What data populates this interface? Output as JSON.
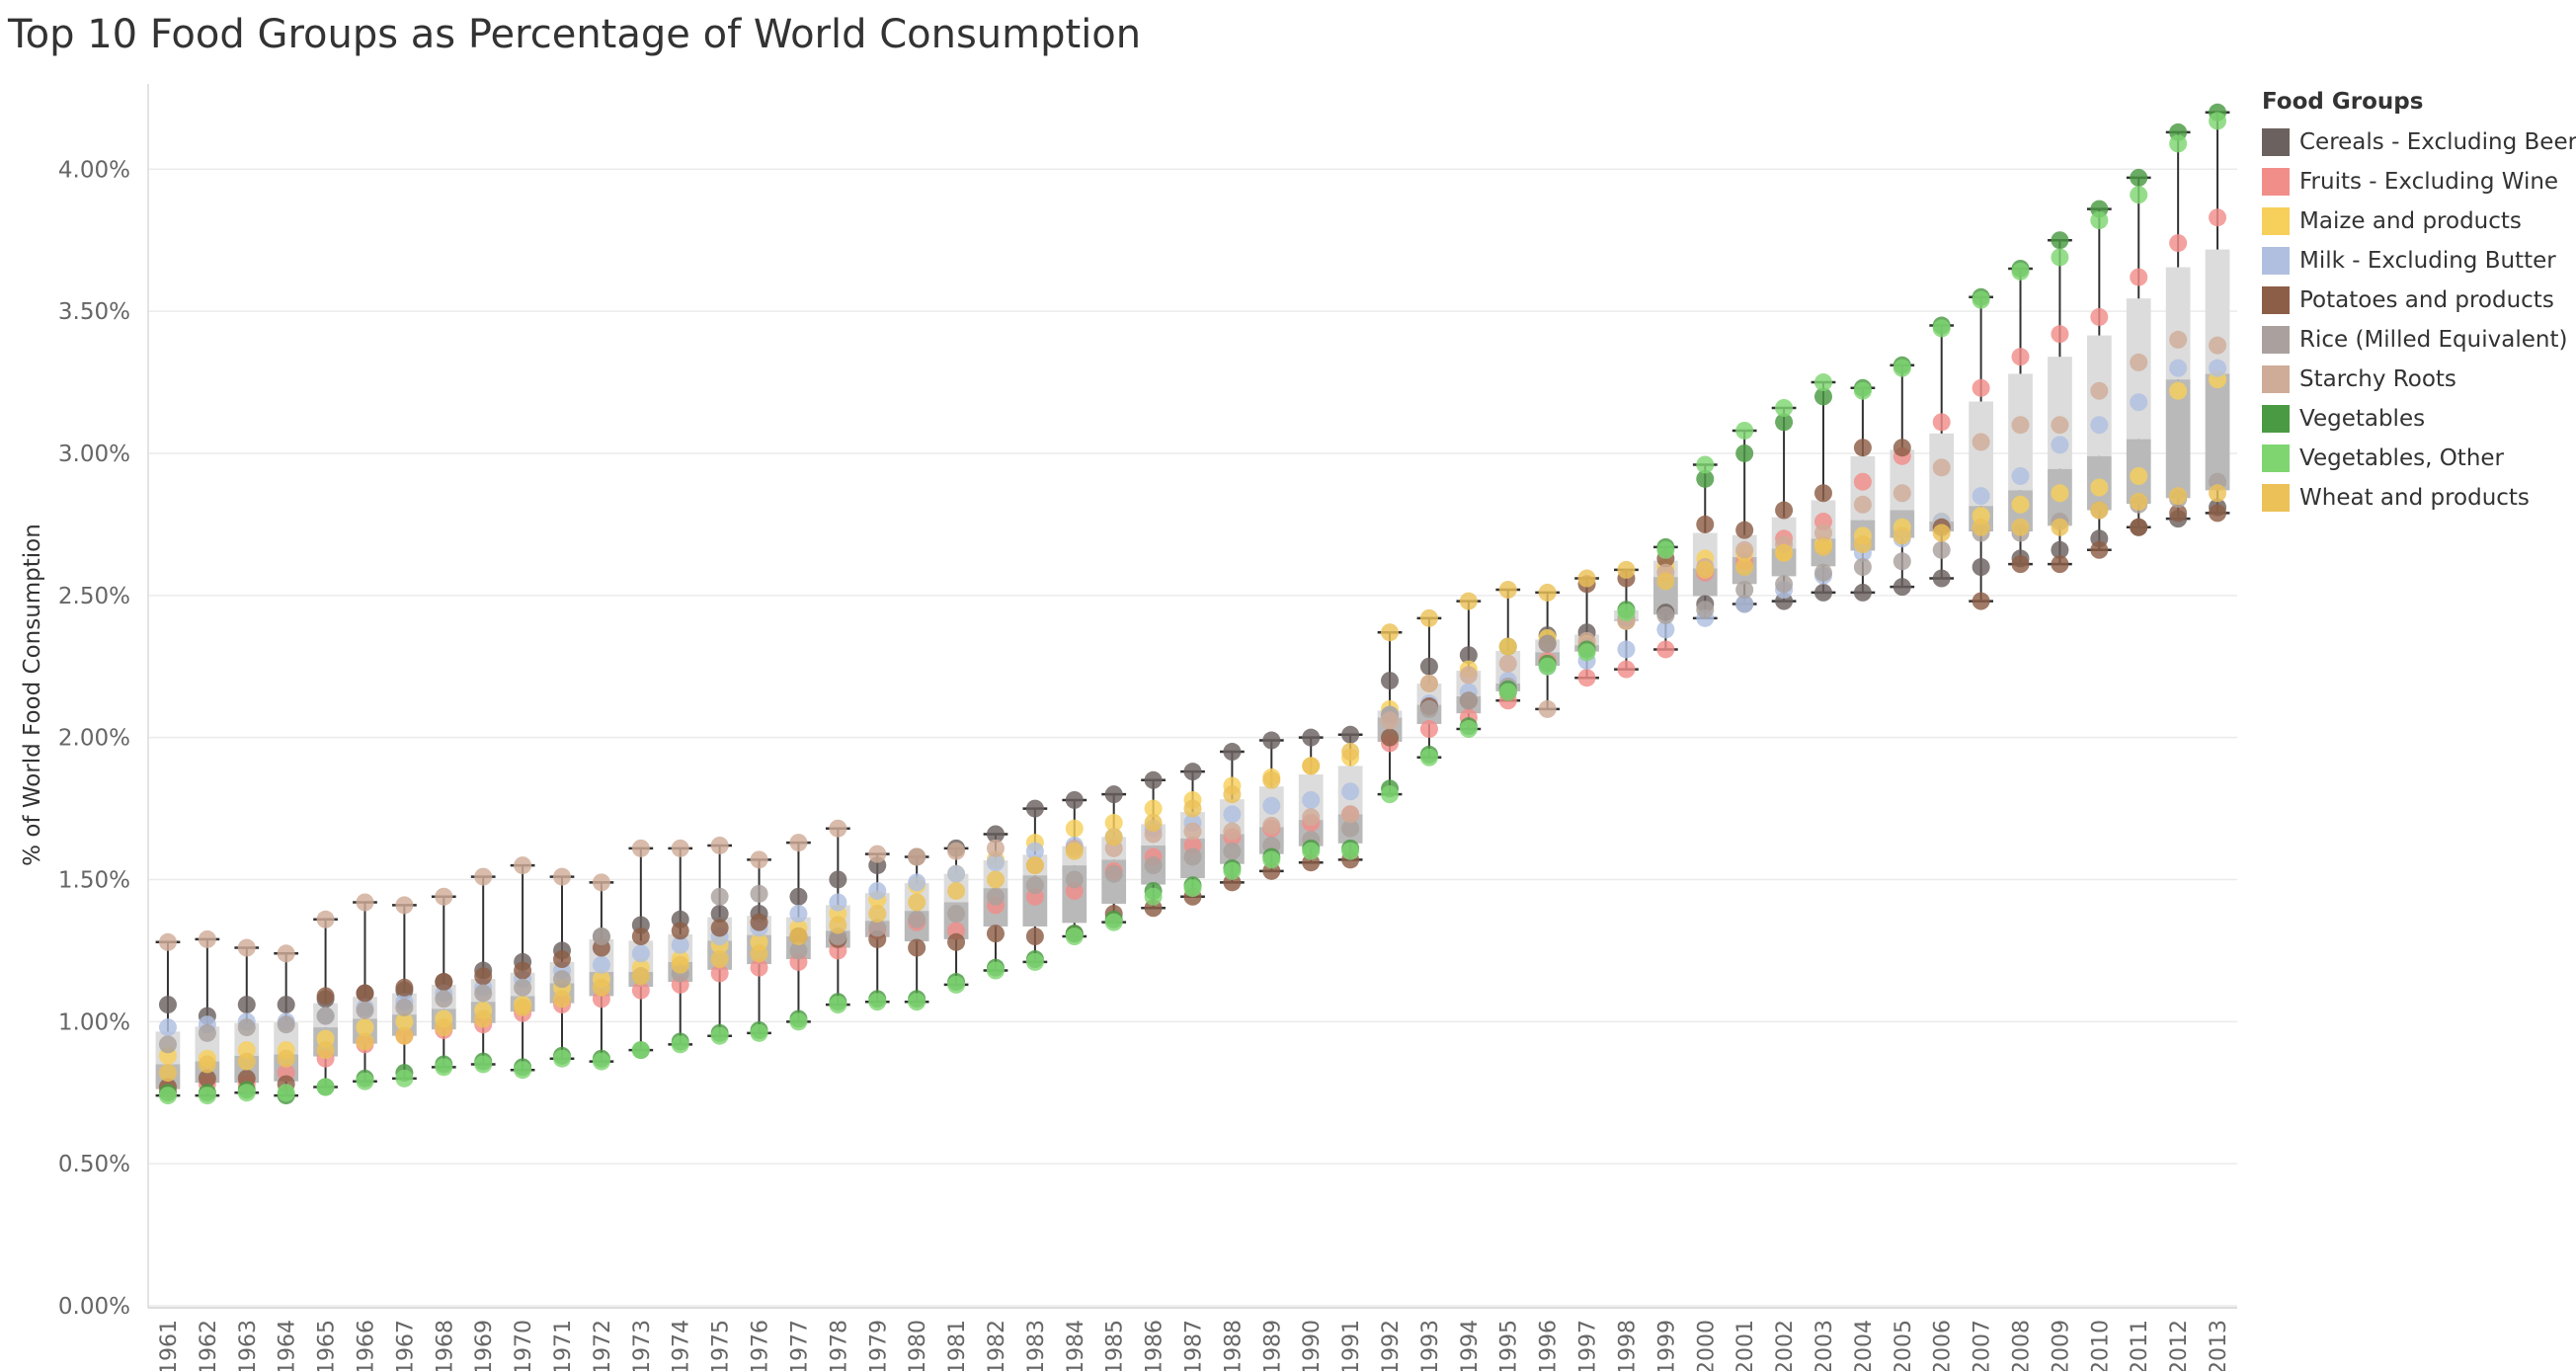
{
  "title": "Top 10 Food Groups as Percentage of World Consumption",
  "legend": {
    "title": "Food Groups",
    "placement": "right"
  },
  "chart_data": {
    "type": "box-dot",
    "title": "Top 10 Food Groups as Percentage of World Consumption",
    "xlabel": "",
    "ylabel": "% of World Food Consumption",
    "ylim": [
      0,
      4.3
    ],
    "yticks": [
      "0.00%",
      "0.50%",
      "1.00%",
      "1.50%",
      "2.00%",
      "2.50%",
      "3.00%",
      "3.50%",
      "4.00%"
    ],
    "ytick_values": [
      0,
      0.5,
      1.0,
      1.5,
      2.0,
      2.5,
      3.0,
      3.5,
      4.0
    ],
    "grid": "horizontal",
    "categories": [
      "1961",
      "1962",
      "1963",
      "1964",
      "1965",
      "1966",
      "1967",
      "1968",
      "1969",
      "1970",
      "1971",
      "1972",
      "1973",
      "1974",
      "1975",
      "1976",
      "1977",
      "1978",
      "1979",
      "1980",
      "1981",
      "1982",
      "1983",
      "1984",
      "1985",
      "1986",
      "1987",
      "1988",
      "1989",
      "1990",
      "1991",
      "1992",
      "1993",
      "1994",
      "1995",
      "1996",
      "1997",
      "1998",
      "1999",
      "2000",
      "2001",
      "2002",
      "2003",
      "2004",
      "2005",
      "2006",
      "2007",
      "2008",
      "2009",
      "2010",
      "2011",
      "2012",
      "2013"
    ],
    "series": [
      {
        "name": "Cereals - Excluding Beer",
        "color": "#6b625f",
        "values": [
          1.06,
          1.02,
          1.06,
          1.06,
          1.08,
          1.1,
          1.11,
          1.14,
          1.18,
          1.21,
          1.25,
          1.3,
          1.34,
          1.36,
          1.38,
          1.38,
          1.44,
          1.5,
          1.55,
          1.58,
          1.61,
          1.66,
          1.75,
          1.78,
          1.8,
          1.85,
          1.88,
          1.95,
          1.99,
          2.0,
          2.01,
          2.2,
          2.25,
          2.29,
          2.32,
          2.36,
          2.37,
          2.41,
          2.44,
          2.47,
          2.47,
          2.48,
          2.51,
          2.51,
          2.53,
          2.56,
          2.6,
          2.63,
          2.66,
          2.7,
          2.74,
          2.77,
          2.81
        ]
      },
      {
        "name": "Fruits - Excluding Wine",
        "color": "#f28e8a",
        "values": [
          0.76,
          0.78,
          0.78,
          0.82,
          0.87,
          0.92,
          0.95,
          0.97,
          0.99,
          1.03,
          1.06,
          1.08,
          1.11,
          1.13,
          1.17,
          1.19,
          1.21,
          1.25,
          1.32,
          1.35,
          1.32,
          1.41,
          1.44,
          1.46,
          1.53,
          1.58,
          1.62,
          1.65,
          1.68,
          1.7,
          1.73,
          1.98,
          2.03,
          2.07,
          2.13,
          2.27,
          2.21,
          2.24,
          2.31,
          2.58,
          2.62,
          2.7,
          2.76,
          2.9,
          2.99,
          3.11,
          3.23,
          3.34,
          3.42,
          3.48,
          3.62,
          3.74,
          3.83
        ]
      },
      {
        "name": "Maize and products",
        "color": "#f7cf5b",
        "values": [
          0.88,
          0.87,
          0.9,
          0.9,
          0.94,
          0.98,
          1.0,
          1.01,
          1.04,
          1.06,
          1.12,
          1.15,
          1.19,
          1.22,
          1.27,
          1.28,
          1.33,
          1.38,
          1.43,
          1.48,
          1.52,
          1.57,
          1.63,
          1.68,
          1.7,
          1.75,
          1.78,
          1.83,
          1.86,
          1.9,
          1.93,
          2.1,
          2.19,
          2.24,
          2.32,
          2.35,
          2.33,
          2.41,
          2.6,
          2.63,
          2.65,
          2.65,
          2.68,
          2.71,
          2.74,
          2.76,
          2.78,
          2.82,
          2.86,
          2.88,
          2.92,
          3.22,
          3.26
        ]
      },
      {
        "name": "Milk - Excluding Butter",
        "color": "#b0bfe0",
        "values": [
          0.98,
          0.99,
          1.0,
          1.0,
          1.02,
          1.05,
          1.07,
          1.1,
          1.12,
          1.15,
          1.18,
          1.2,
          1.24,
          1.27,
          1.3,
          1.33,
          1.38,
          1.42,
          1.46,
          1.49,
          1.52,
          1.56,
          1.6,
          1.62,
          1.65,
          1.68,
          1.7,
          1.73,
          1.76,
          1.78,
          1.81,
          2.08,
          2.12,
          2.16,
          2.2,
          2.25,
          2.27,
          2.31,
          2.38,
          2.42,
          2.47,
          2.52,
          2.57,
          2.65,
          2.7,
          2.76,
          2.85,
          2.92,
          3.03,
          3.1,
          3.18,
          3.3,
          3.3
        ]
      },
      {
        "name": "Potatoes and products",
        "color": "#8c5e47",
        "values": [
          0.77,
          0.8,
          0.8,
          0.78,
          1.09,
          1.1,
          1.12,
          1.14,
          1.16,
          1.18,
          1.22,
          1.26,
          1.3,
          1.32,
          1.33,
          1.35,
          1.3,
          1.29,
          1.29,
          1.26,
          1.28,
          1.31,
          1.3,
          1.31,
          1.38,
          1.4,
          1.44,
          1.49,
          1.53,
          1.56,
          1.57,
          2.0,
          2.11,
          2.13,
          2.16,
          2.33,
          2.54,
          2.56,
          2.63,
          2.75,
          2.73,
          2.8,
          2.86,
          3.02,
          3.02,
          2.74,
          2.48,
          2.61,
          2.61,
          2.66,
          2.74,
          2.79,
          2.79
        ]
      },
      {
        "name": "Rice (Milled Equivalent)",
        "color": "#aaa19e",
        "values": [
          0.92,
          0.96,
          0.98,
          0.99,
          1.02,
          1.04,
          1.05,
          1.08,
          1.1,
          1.12,
          1.15,
          1.3,
          1.16,
          1.17,
          1.44,
          1.45,
          1.25,
          1.3,
          1.33,
          1.36,
          1.38,
          1.44,
          1.48,
          1.5,
          1.52,
          1.55,
          1.58,
          1.6,
          1.62,
          1.64,
          1.68,
          2.08,
          2.1,
          2.13,
          2.18,
          2.33,
          2.32,
          2.42,
          2.43,
          2.45,
          2.52,
          2.54,
          2.58,
          2.6,
          2.62,
          2.66,
          2.72,
          2.72,
          2.76,
          2.8,
          2.82,
          2.84,
          2.9
        ]
      },
      {
        "name": "Starchy Roots",
        "color": "#cfac98",
        "values": [
          1.28,
          1.29,
          1.26,
          1.24,
          1.36,
          1.42,
          1.41,
          1.44,
          1.51,
          1.55,
          1.51,
          1.49,
          1.61,
          1.61,
          1.62,
          1.57,
          1.63,
          1.68,
          1.59,
          1.58,
          1.6,
          1.61,
          1.55,
          1.61,
          1.61,
          1.66,
          1.67,
          1.67,
          1.69,
          1.72,
          1.73,
          2.06,
          2.19,
          2.22,
          2.26,
          2.1,
          2.34,
          2.41,
          2.58,
          2.6,
          2.66,
          2.68,
          2.72,
          2.82,
          2.86,
          2.95,
          3.04,
          3.1,
          3.1,
          3.22,
          3.32,
          3.4,
          3.38
        ]
      },
      {
        "name": "Vegetables",
        "color": "#4a9a43",
        "values": [
          0.75,
          0.75,
          0.76,
          0.74,
          0.77,
          0.8,
          0.82,
          0.85,
          0.86,
          0.84,
          0.88,
          0.87,
          0.9,
          0.93,
          0.96,
          0.97,
          1.01,
          1.07,
          1.08,
          1.08,
          1.14,
          1.19,
          1.22,
          1.31,
          1.36,
          1.46,
          1.48,
          1.54,
          1.58,
          1.61,
          1.61,
          1.82,
          1.94,
          2.04,
          2.17,
          2.26,
          2.31,
          2.45,
          2.67,
          2.91,
          3.0,
          3.11,
          3.2,
          3.23,
          3.31,
          3.45,
          3.55,
          3.65,
          3.75,
          3.86,
          3.97,
          4.13,
          4.2
        ]
      },
      {
        "name": "Vegetables, Other",
        "color": "#7fd671",
        "values": [
          0.74,
          0.74,
          0.75,
          0.75,
          0.77,
          0.79,
          0.8,
          0.84,
          0.85,
          0.83,
          0.87,
          0.86,
          0.9,
          0.92,
          0.95,
          0.96,
          1.0,
          1.06,
          1.07,
          1.07,
          1.13,
          1.18,
          1.21,
          1.3,
          1.35,
          1.44,
          1.47,
          1.53,
          1.57,
          1.6,
          1.6,
          1.8,
          1.93,
          2.03,
          2.16,
          2.25,
          2.3,
          2.44,
          2.66,
          2.96,
          3.08,
          3.16,
          3.25,
          3.22,
          3.3,
          3.44,
          3.54,
          3.64,
          3.69,
          3.82,
          3.91,
          4.09,
          4.17
        ]
      },
      {
        "name": "Wheat and products",
        "color": "#ecc158",
        "values": [
          0.82,
          0.85,
          0.86,
          0.87,
          0.9,
          0.93,
          0.95,
          0.98,
          1.01,
          1.05,
          1.08,
          1.12,
          1.16,
          1.2,
          1.22,
          1.24,
          1.3,
          1.34,
          1.38,
          1.42,
          1.46,
          1.5,
          1.55,
          1.6,
          1.65,
          1.7,
          1.75,
          1.8,
          1.85,
          1.9,
          1.95,
          2.37,
          2.42,
          2.48,
          2.52,
          2.51,
          2.56,
          2.59,
          2.55,
          2.59,
          2.6,
          2.65,
          2.67,
          2.68,
          2.71,
          2.72,
          2.74,
          2.74,
          2.74,
          2.8,
          2.83,
          2.85,
          2.86
        ]
      }
    ]
  }
}
